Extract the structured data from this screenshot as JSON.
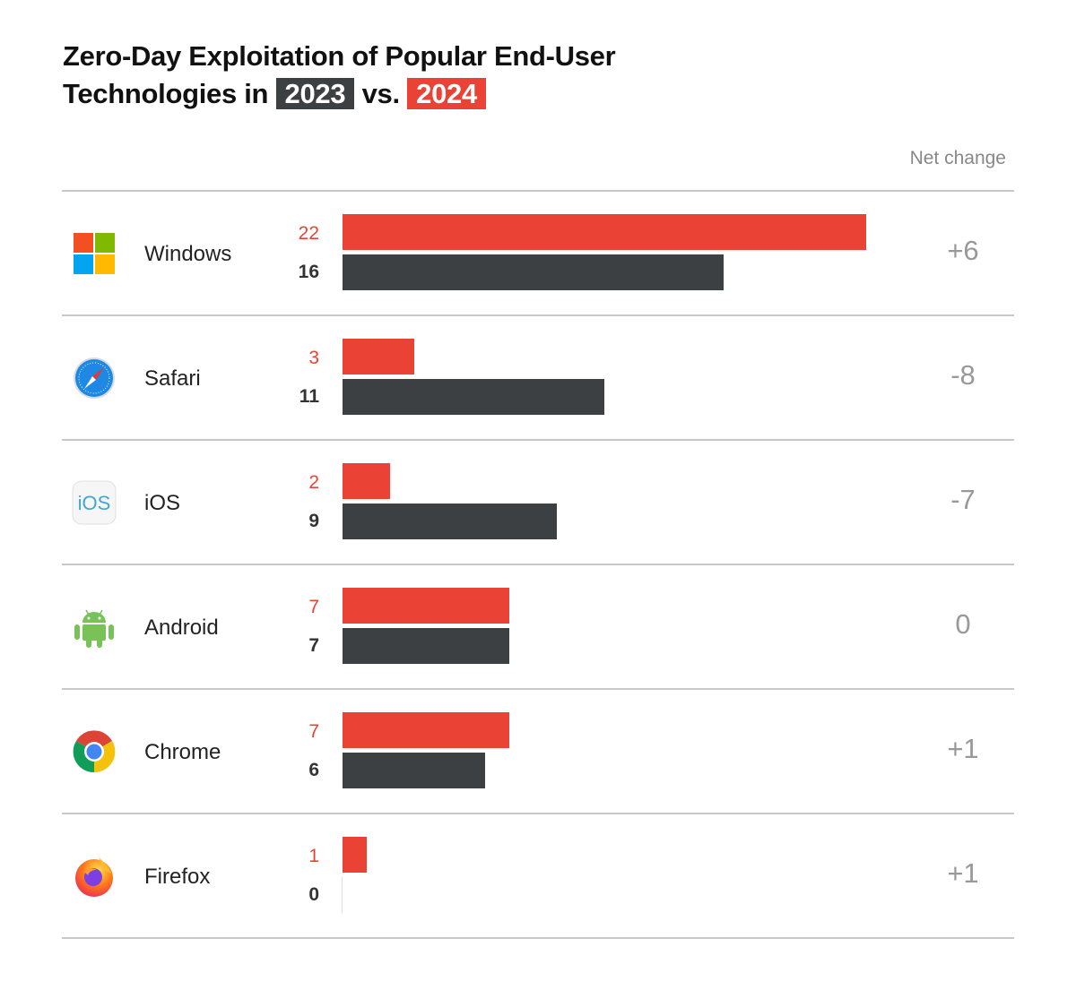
{
  "chart_data": {
    "type": "bar",
    "title_line1": "Zero-Day Exploitation of Popular End-User",
    "title_line2_prefix": "Technologies in",
    "title_mid": "vs.",
    "net_change_header": "Net change",
    "categories": [
      "Windows",
      "Safari",
      "iOS",
      "Android",
      "Chrome",
      "Firefox"
    ],
    "series": [
      {
        "name": "2024",
        "color": "#ea4335",
        "values": [
          22,
          3,
          2,
          7,
          7,
          1
        ]
      },
      {
        "name": "2023",
        "color": "#3c4043",
        "values": [
          16,
          11,
          9,
          7,
          6,
          0
        ]
      }
    ],
    "net_change": [
      "+6",
      "-8",
      "-7",
      "0",
      "+1",
      "+1"
    ],
    "icons": [
      "windows-logo-icon",
      "safari-logo-icon",
      "ios-logo-icon",
      "android-logo-icon",
      "chrome-logo-icon",
      "firefox-logo-icon"
    ],
    "xlim": [
      0,
      22
    ],
    "grid": false,
    "orientation": "horizontal"
  }
}
